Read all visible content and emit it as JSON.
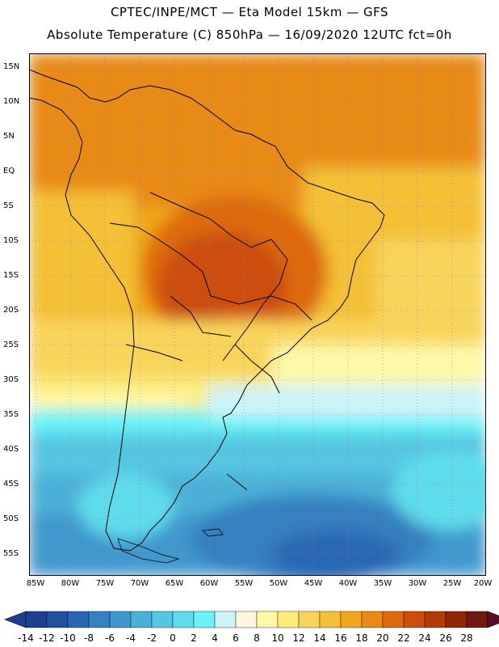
{
  "header": {
    "line1": "CPTEC/INPE/MCT —  Eta Model 15km — GFS",
    "line2": "Absolute Temperature (C) 850hPa — 16/09/2020 12UTC fct=0h"
  },
  "map": {
    "lat_labels": [
      "15N",
      "10N",
      "5N",
      "EQ",
      "5S",
      "10S",
      "15S",
      "20S",
      "25S",
      "30S",
      "35S",
      "40S",
      "45S",
      "50S",
      "55S"
    ],
    "lon_labels": [
      "85W",
      "80W",
      "75W",
      "70W",
      "65W",
      "60W",
      "55W",
      "50W",
      "45W",
      "40W",
      "35W",
      "30W",
      "25W",
      "20W"
    ]
  },
  "colorbar": {
    "labels": [
      "-14",
      "-12",
      "-10",
      "-8",
      "-6",
      "-4",
      "-2",
      "0",
      "2",
      "4",
      "6",
      "8",
      "10",
      "12",
      "14",
      "16",
      "18",
      "20",
      "22",
      "24",
      "26",
      "28"
    ],
    "colors": [
      "#1c3f8f",
      "#2152a0",
      "#2a67b3",
      "#3480c0",
      "#3f98cd",
      "#4bb0d8",
      "#55c6e2",
      "#5edcec",
      "#6af2f8",
      "#ccf3f8",
      "#fdf6e0",
      "#fef8a8",
      "#fdeb7c",
      "#f8d45a",
      "#f4c036",
      "#f0a818",
      "#e88a14",
      "#de6a0c",
      "#cc4e08",
      "#b23a06",
      "#8f2604",
      "#6e1a10"
    ]
  }
}
